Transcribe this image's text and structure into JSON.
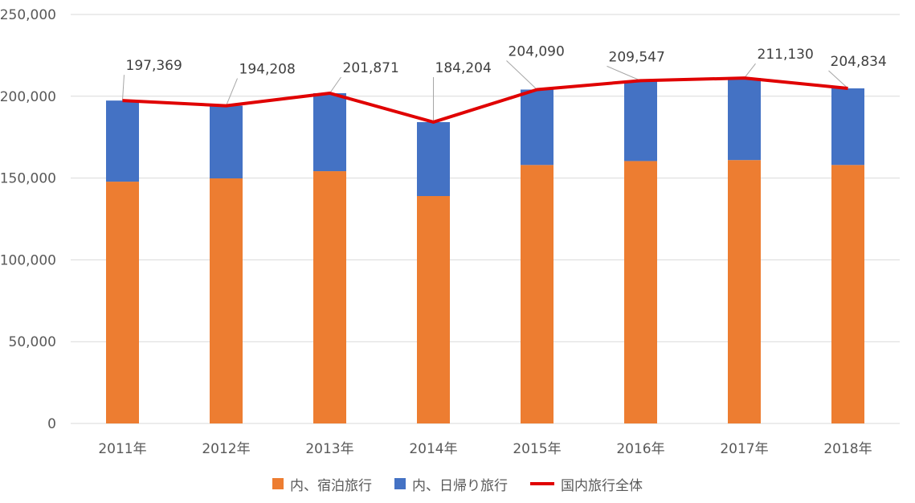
{
  "chart_data": {
    "type": "bar",
    "stacked": true,
    "categories": [
      "2011年",
      "2012年",
      "2013年",
      "2014年",
      "2015年",
      "2016年",
      "2017年",
      "2018年"
    ],
    "series": [
      {
        "name": "内、宿泊旅行",
        "kind": "bar",
        "color": "#ED7D31",
        "values": [
          147800,
          149800,
          154200,
          139000,
          158000,
          160400,
          161000,
          158000
        ]
      },
      {
        "name": "内、日帰り旅行",
        "kind": "bar",
        "color": "#4472C4",
        "values": [
          49569,
          44408,
          47671,
          45204,
          46090,
          49147,
          50130,
          46834
        ]
      },
      {
        "name": "国内旅行全体",
        "kind": "line",
        "color": "#E00000",
        "values": [
          197369,
          194208,
          201871,
          184204,
          204090,
          209547,
          211130,
          204834
        ]
      }
    ],
    "data_labels": [
      "197,369",
      "194,208",
      "201,871",
      "184,204",
      "204,090",
      "209,547",
      "211,130",
      "204,834"
    ],
    "y_ticks": [
      "0",
      "50,000",
      "100,000",
      "150,000",
      "200,000",
      "250,000"
    ],
    "ylim": [
      0,
      250000
    ],
    "grid": true,
    "legend_position": "bottom"
  }
}
